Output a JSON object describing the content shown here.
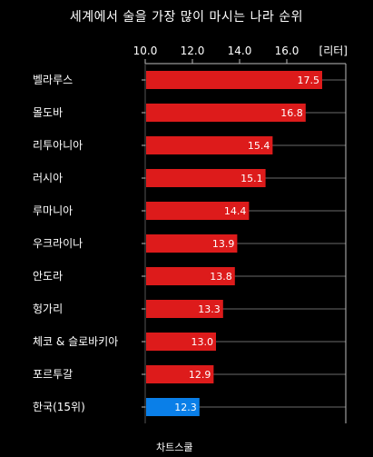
{
  "chart_data": {
    "type": "bar",
    "orientation": "horizontal",
    "title": "세계에서 술을 가장 많이 마시는 나라 순위",
    "unit_label": "[리터]",
    "categories": [
      "벨라루스",
      "몰도바",
      "리투아니아",
      "러시아",
      "루마니아",
      "우크라이나",
      "안도라",
      "헝가리",
      "체코 & 슬로바키아",
      "포르투갈",
      "한국(15위)"
    ],
    "values": [
      17.5,
      16.8,
      15.4,
      15.1,
      14.4,
      13.9,
      13.8,
      13.3,
      13.0,
      12.9,
      12.3
    ],
    "value_labels": [
      "17.5",
      "16.8",
      "15.4",
      "15.1",
      "14.4",
      "13.9",
      "13.8",
      "13.3",
      "13.0",
      "12.9",
      "12.3"
    ],
    "xlim": [
      10.0,
      18.5
    ],
    "ticks": [
      10.0,
      12.0,
      14.0,
      16.0
    ],
    "tick_labels": [
      "10.0",
      "12.0",
      "14.0",
      "16.0"
    ],
    "axis_position": "top",
    "grid": true,
    "colors": {
      "bar": "#dd1b1b",
      "highlight": "#0a7fe8",
      "grid": "#6a6a6a",
      "background": "#000000"
    },
    "highlight_index": 10
  },
  "source": "차트스쿨"
}
